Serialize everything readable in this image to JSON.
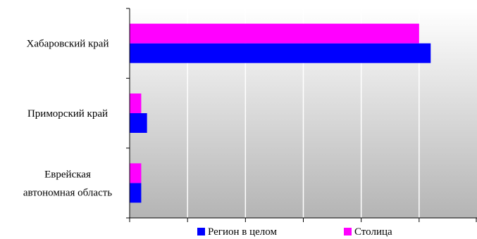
{
  "chart_data": {
    "type": "bar",
    "orientation": "horizontal",
    "categories": [
      "Хабаровский край",
      "Приморский край",
      "Еврейская автономная область"
    ],
    "category_lines": [
      [
        "Хабаровский край"
      ],
      [
        "Приморский край"
      ],
      [
        "Еврейская",
        "автономная область"
      ]
    ],
    "series": [
      {
        "name": "Регион в целом",
        "color": "#0000ff",
        "values": [
          52,
          3,
          2
        ]
      },
      {
        "name": "Столица",
        "color": "#ff00ff",
        "values": [
          50,
          2,
          2
        ]
      }
    ],
    "xlim": [
      0,
      60
    ],
    "grid": true,
    "legend_position": "bottom",
    "background": "gradient white to gray"
  }
}
